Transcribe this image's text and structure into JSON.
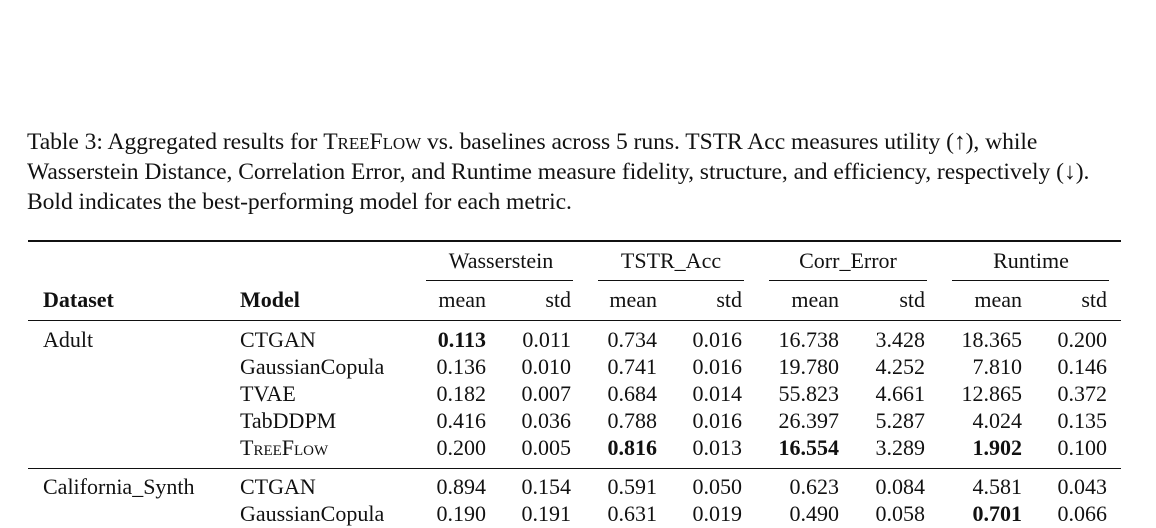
{
  "caption": {
    "label": "Table 3:",
    "part1": " Aggregated results for ",
    "treeflow": "TreeFlow",
    "part2": " vs. baselines across 5 runs. TSTR Acc measures utility (↑), while Wasserstein Distance, Correlation Error, and Runtime measure fidelity, structure, and efficiency, respectively (↓). Bold indicates the best-performing model for each metric."
  },
  "header": {
    "dataset": "Dataset",
    "model": "Model",
    "groups": [
      "Wasserstein",
      "TSTR_Acc",
      "Corr_Error",
      "Runtime"
    ],
    "sub": [
      "mean",
      "std",
      "mean",
      "std",
      "mean",
      "std",
      "mean",
      "std"
    ]
  },
  "rows": [
    {
      "dataset": "Adult",
      "model": "CTGAN",
      "vals": [
        "0.113",
        "0.011",
        "0.734",
        "0.016",
        "16.738",
        "3.428",
        "18.365",
        "0.200"
      ],
      "bold": [
        0
      ]
    },
    {
      "dataset": "",
      "model": "GaussianCopula",
      "vals": [
        "0.136",
        "0.010",
        "0.741",
        "0.016",
        "19.780",
        "4.252",
        "7.810",
        "0.146"
      ],
      "bold": []
    },
    {
      "dataset": "",
      "model": "TVAE",
      "vals": [
        "0.182",
        "0.007",
        "0.684",
        "0.014",
        "55.823",
        "4.661",
        "12.865",
        "0.372"
      ],
      "bold": []
    },
    {
      "dataset": "",
      "model": "TabDDPM",
      "vals": [
        "0.416",
        "0.036",
        "0.788",
        "0.016",
        "26.397",
        "5.287",
        "4.024",
        "0.135"
      ],
      "bold": []
    },
    {
      "dataset": "",
      "model": "TreeFlow",
      "smallcaps": true,
      "vals": [
        "0.200",
        "0.005",
        "0.816",
        "0.013",
        "16.554",
        "3.289",
        "1.902",
        "0.100"
      ],
      "bold": [
        2,
        4,
        6
      ]
    },
    {
      "dataset": "California_Synth",
      "model": "CTGAN",
      "vals": [
        "0.894",
        "0.154",
        "0.591",
        "0.050",
        "0.623",
        "0.084",
        "4.581",
        "0.043"
      ],
      "bold": []
    },
    {
      "dataset": "",
      "model": "GaussianCopula",
      "vals": [
        "0.190",
        "0.191",
        "0.631",
        "0.019",
        "0.490",
        "0.058",
        "0.701",
        "0.066"
      ],
      "bold": [
        6
      ]
    }
  ]
}
